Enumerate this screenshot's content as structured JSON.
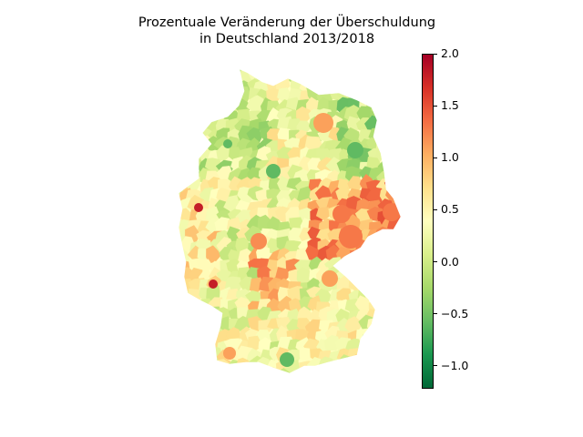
{
  "title": {
    "line1": "Prozentuale Veränderung der Überschuldung",
    "line2": "in Deutschland 2013/2018"
  },
  "colorbar": {
    "colormap": "RdYlGn_r",
    "min": -1.22,
    "max": 2.0,
    "ticks": [
      {
        "value": 2.0,
        "label": "2.0"
      },
      {
        "value": 1.5,
        "label": "1.5"
      },
      {
        "value": 1.0,
        "label": "1.0"
      },
      {
        "value": 0.5,
        "label": "0.5"
      },
      {
        "value": 0.0,
        "label": "0.0"
      },
      {
        "value": -0.5,
        "label": "−0.5"
      },
      {
        "value": -1.0,
        "label": "−1.0"
      }
    ],
    "stops": [
      "#006837",
      "#1a9850",
      "#66bd63",
      "#a6d96a",
      "#d9ef8b",
      "#ffffbf",
      "#fee08b",
      "#fdae61",
      "#f46d43",
      "#d73027",
      "#a50026"
    ]
  },
  "map": {
    "region": "Deutschland",
    "highlight_values": {
      "east_saxony": 1.3,
      "north_brandenburg": -0.6,
      "west_rhine": 1.8,
      "hesse_center": 1.2,
      "bavaria_north": 1.1
    }
  }
}
